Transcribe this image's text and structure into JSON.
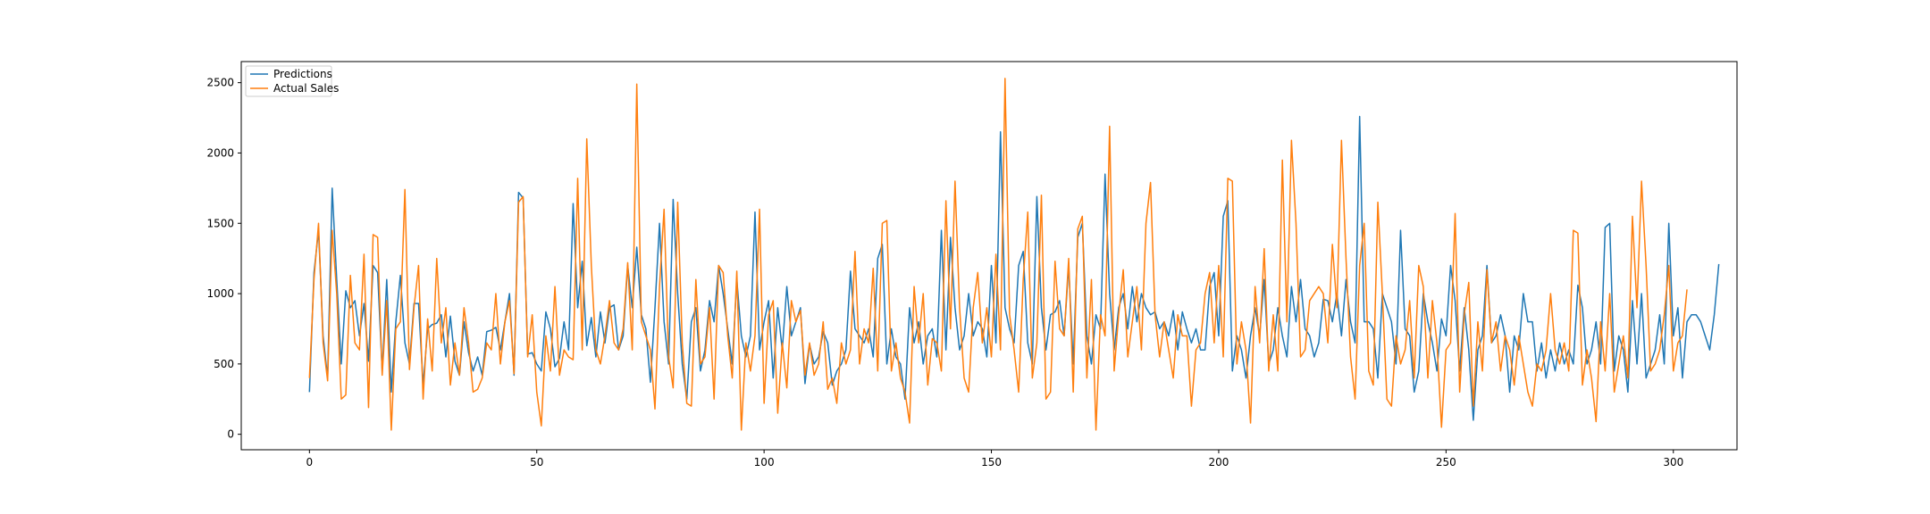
{
  "chart_data": {
    "type": "line",
    "title": "",
    "xlabel": "",
    "ylabel": "",
    "xlim": [
      -15,
      314
    ],
    "ylim": [
      -110,
      2650
    ],
    "x_ticks": [
      0,
      50,
      100,
      150,
      200,
      250,
      300
    ],
    "y_ticks": [
      0,
      500,
      1000,
      1500,
      2000,
      2500
    ],
    "grid": false,
    "legend_position": "top-left",
    "series": [
      {
        "name": "Predictions",
        "color": "#1f77b4",
        "values": [
          300,
          1150,
          1450,
          700,
          400,
          1750,
          1100,
          500,
          1020,
          900,
          950,
          700,
          930,
          520,
          1200,
          1150,
          450,
          1100,
          300,
          800,
          1130,
          650,
          500,
          930,
          930,
          350,
          750,
          780,
          790,
          850,
          550,
          840,
          520,
          420,
          800,
          580,
          450,
          550,
          420,
          730,
          740,
          760,
          600,
          800,
          1000,
          420,
          1720,
          1680,
          570,
          580,
          500,
          450,
          870,
          750,
          480,
          540,
          800,
          600,
          1640,
          900,
          1230,
          630,
          830,
          550,
          870,
          650,
          900,
          920,
          600,
          700,
          1200,
          900,
          1330,
          850,
          750,
          370,
          900,
          1500,
          800,
          500,
          1670,
          1000,
          500,
          250,
          800,
          900,
          450,
          600,
          950,
          800,
          1200,
          1000,
          750,
          500,
          1100,
          700,
          550,
          700,
          1580,
          600,
          800,
          950,
          400,
          900,
          600,
          1050,
          700,
          800,
          900,
          360,
          640,
          500,
          550,
          730,
          650,
          350,
          450,
          500,
          600,
          1160,
          750,
          700,
          650,
          750,
          550,
          1250,
          1350,
          500,
          750,
          550,
          500,
          250,
          900,
          650,
          800,
          500,
          700,
          750,
          550,
          1450,
          600,
          1400,
          900,
          600,
          700,
          1000,
          700,
          800,
          750,
          550,
          1200,
          650,
          2150,
          900,
          750,
          650,
          1200,
          1300,
          650,
          500,
          1690,
          900,
          600,
          850,
          870,
          950,
          700,
          1200,
          500,
          1400,
          1500,
          700,
          500,
          850,
          750,
          1850,
          1000,
          600,
          900,
          1000,
          750,
          1050,
          800,
          1000,
          900,
          850,
          870,
          750,
          800,
          700,
          880,
          600,
          870,
          750,
          650,
          750,
          600,
          600,
          1050,
          1150,
          700,
          1550,
          1660,
          450,
          700,
          600,
          400,
          700,
          900,
          700,
          1100,
          500,
          600,
          900,
          700,
          550,
          1050,
          800,
          1100,
          750,
          700,
          550,
          650,
          960,
          950,
          800,
          1000,
          700,
          1100,
          800,
          650,
          2260,
          800,
          800,
          750,
          400,
          1000,
          900,
          800,
          500,
          1450,
          750,
          700,
          300,
          450,
          1000,
          800,
          650,
          450,
          820,
          700,
          1200,
          950,
          450,
          900,
          600,
          100,
          600,
          700,
          1200,
          650,
          700,
          850,
          700,
          300,
          700,
          600,
          1000,
          800,
          800,
          450,
          650,
          400,
          600,
          450,
          650,
          500,
          600,
          500,
          1060,
          900,
          500,
          600,
          800,
          500,
          1470,
          1500,
          450,
          700,
          600,
          300,
          950,
          500,
          1000,
          400,
          500,
          600,
          850,
          500,
          1500,
          700,
          900,
          400,
          800,
          850,
          850,
          800,
          700,
          600,
          850,
          1210
        ]
      },
      {
        "name": "Actual Sales",
        "color": "#ff7f0e",
        "values": [
          400,
          1100,
          1500,
          650,
          380,
          1450,
          1000,
          250,
          280,
          1130,
          650,
          600,
          1280,
          190,
          1420,
          1400,
          420,
          950,
          30,
          750,
          800,
          1740,
          460,
          900,
          1200,
          250,
          820,
          450,
          1250,
          650,
          900,
          350,
          650,
          420,
          900,
          650,
          300,
          320,
          400,
          650,
          600,
          1000,
          500,
          800,
          950,
          430,
          1650,
          1690,
          550,
          850,
          300,
          60,
          700,
          450,
          1050,
          420,
          600,
          550,
          530,
          1820,
          600,
          2100,
          1200,
          600,
          500,
          700,
          950,
          650,
          600,
          750,
          1220,
          600,
          2490,
          800,
          700,
          600,
          180,
          1050,
          1600,
          550,
          330,
          1650,
          650,
          220,
          200,
          1100,
          500,
          550,
          900,
          250,
          1200,
          1150,
          700,
          400,
          1160,
          30,
          650,
          450,
          700,
          1600,
          220,
          850,
          950,
          150,
          650,
          330,
          950,
          800,
          880,
          420,
          650,
          420,
          500,
          800,
          320,
          400,
          220,
          650,
          500,
          600,
          1300,
          500,
          750,
          650,
          1180,
          450,
          1500,
          1520,
          450,
          650,
          400,
          300,
          80,
          1050,
          650,
          1000,
          350,
          680,
          650,
          450,
          1660,
          750,
          1800,
          900,
          400,
          300,
          900,
          1150,
          650,
          900,
          550,
          1280,
          600,
          2530,
          850,
          600,
          300,
          1100,
          1580,
          400,
          650,
          1700,
          250,
          300,
          1230,
          750,
          700,
          1250,
          300,
          1460,
          1550,
          400,
          1100,
          30,
          850,
          700,
          2190,
          450,
          850,
          1170,
          550,
          800,
          1050,
          600,
          1500,
          1790,
          850,
          550,
          800,
          600,
          400,
          850,
          700,
          700,
          200,
          600,
          650,
          1000,
          1150,
          650,
          1200,
          550,
          1820,
          1800,
          500,
          800,
          600,
          80,
          1050,
          650,
          1320,
          450,
          850,
          450,
          1950,
          800,
          2090,
          1500,
          550,
          600,
          950,
          1000,
          1050,
          1000,
          650,
          1350,
          900,
          2090,
          1250,
          550,
          250,
          1200,
          1500,
          450,
          350,
          1650,
          1000,
          250,
          200,
          700,
          500,
          600,
          950,
          400,
          1200,
          1050,
          400,
          950,
          650,
          50,
          600,
          650,
          1570,
          300,
          850,
          1080,
          200,
          800,
          450,
          1170,
          650,
          800,
          450,
          700,
          600,
          350,
          700,
          500,
          300,
          200,
          500,
          450,
          600,
          1000,
          600,
          500,
          650,
          450,
          1450,
          1430,
          350,
          600,
          400,
          90,
          800,
          450,
          1000,
          300,
          500,
          700,
          400,
          1550,
          900,
          1800,
          1200,
          450,
          500,
          600,
          850,
          1200,
          450,
          650,
          700,
          1030
        ]
      }
    ]
  }
}
